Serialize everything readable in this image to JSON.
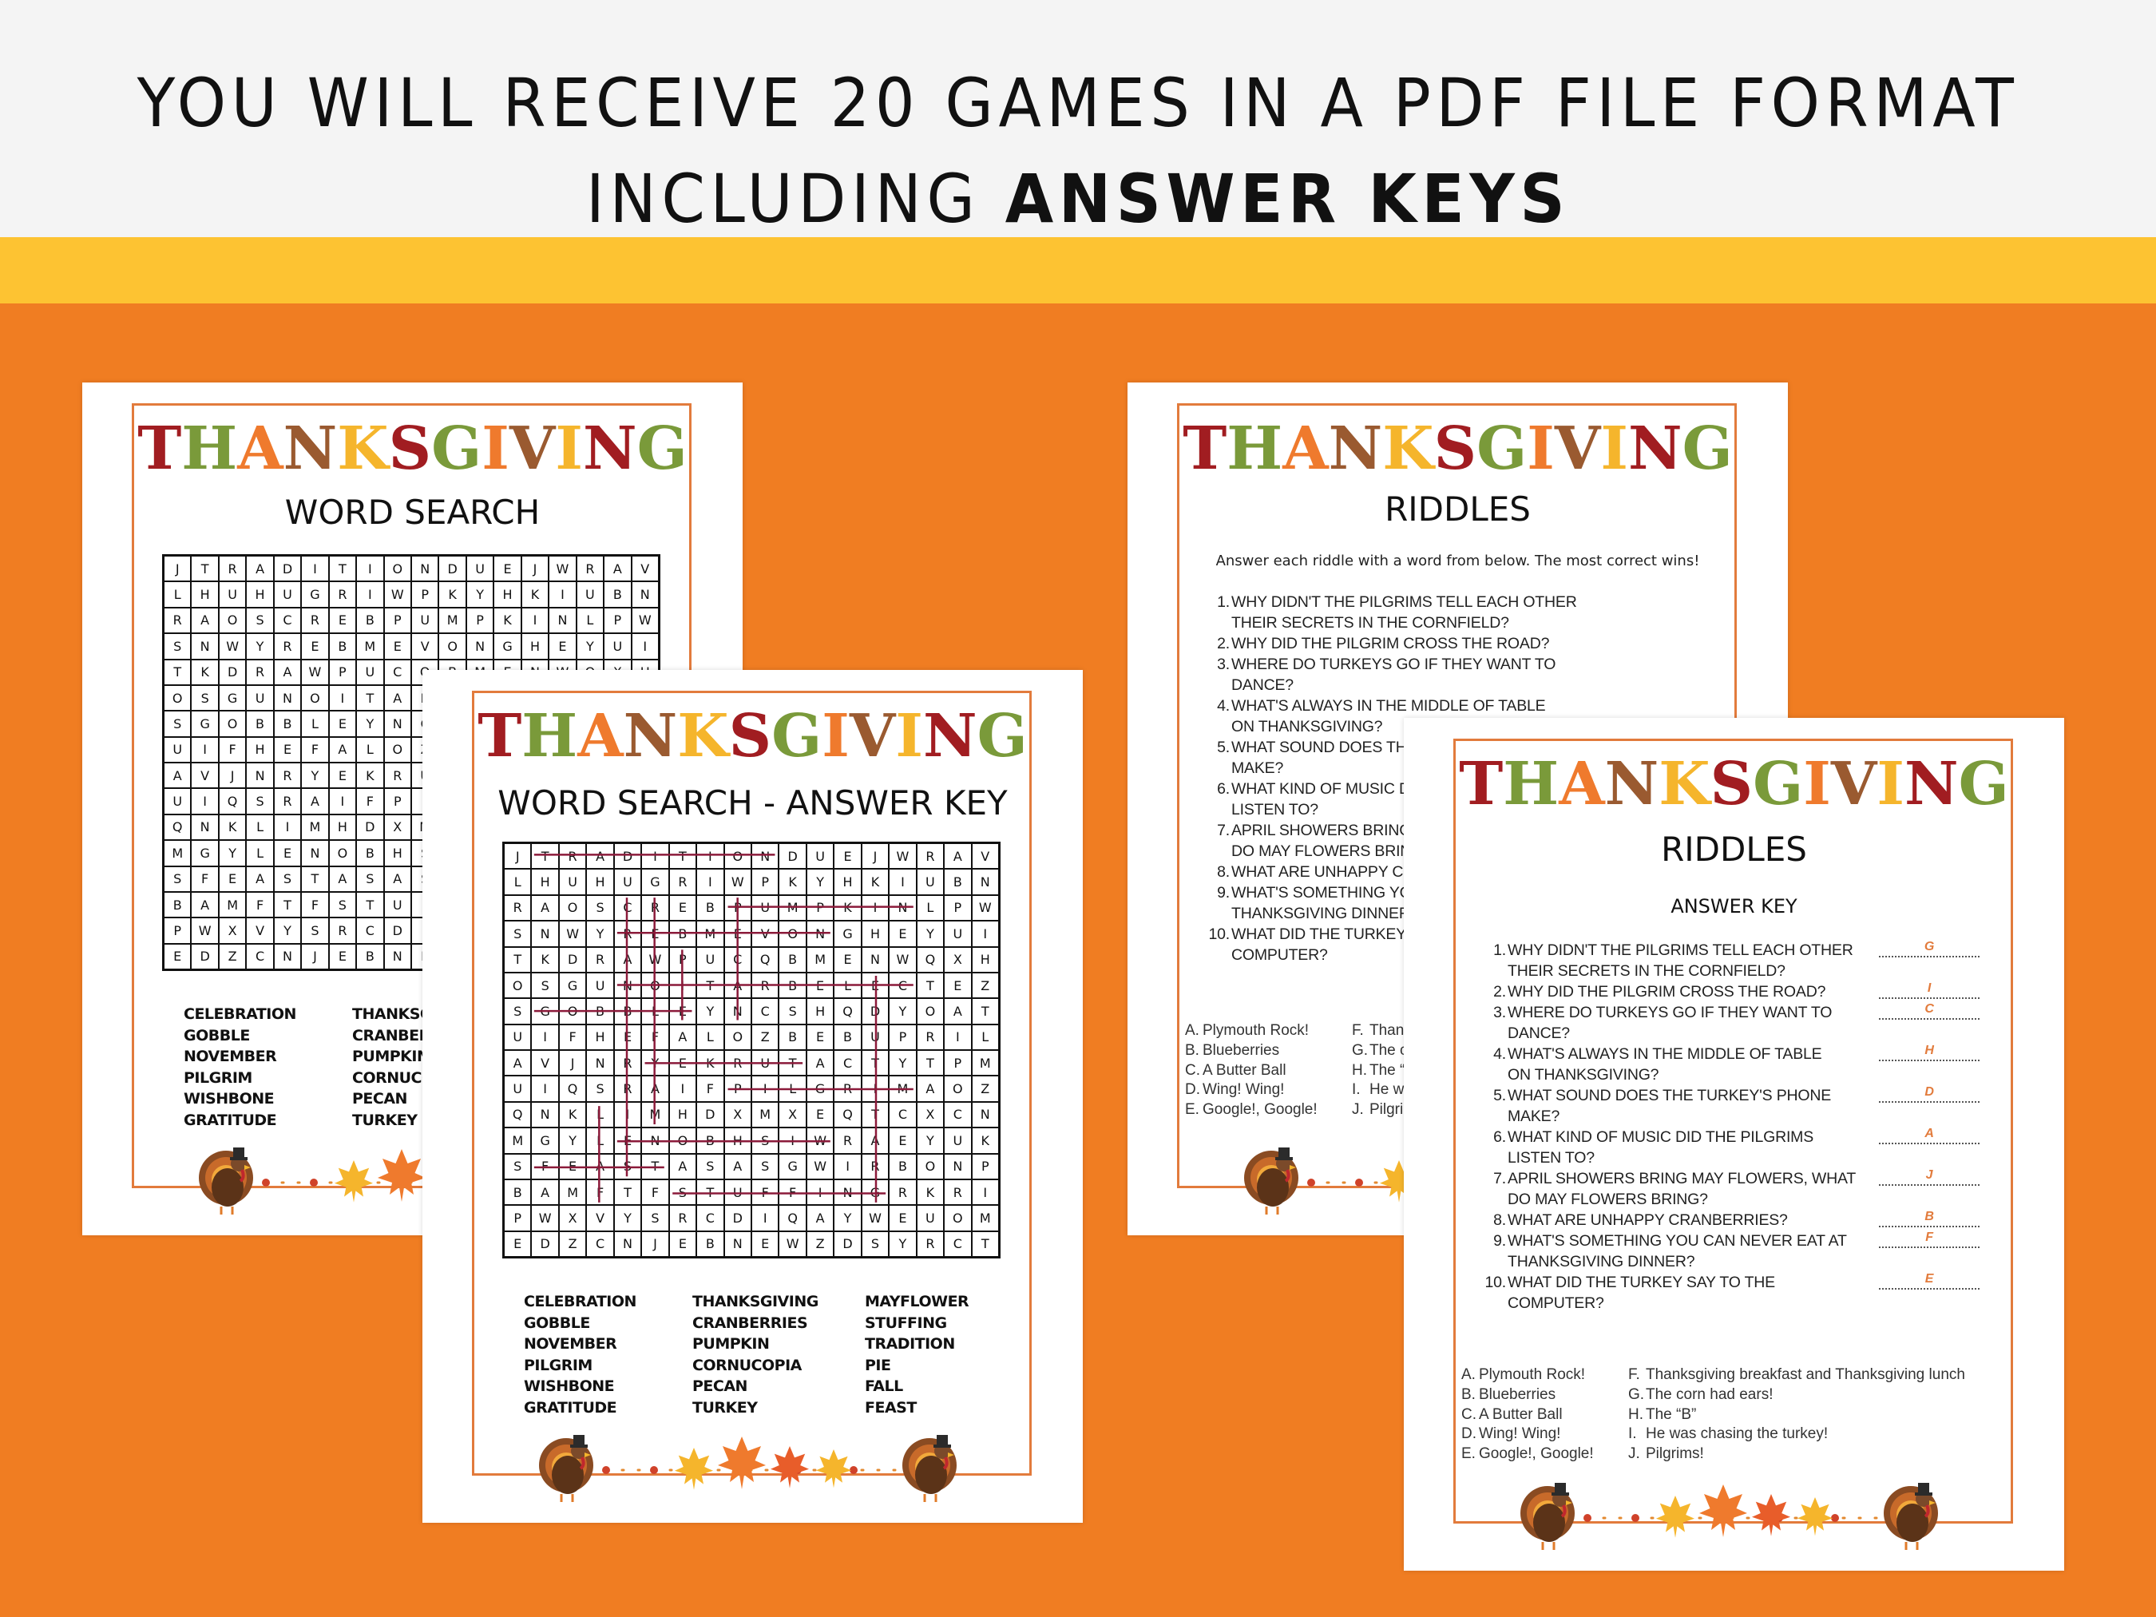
{
  "headline": {
    "line1": "YOU WILL RECEIVE 20 GAMES IN A PDF FILE FORMAT",
    "line2_normal": "INCLUDING ",
    "line2_bold": "ANSWER KEYS"
  },
  "colors": {
    "top_bg": "#f4f4f4",
    "band": "#fdc332",
    "background": "#f07d22",
    "frame": "#e27b3c",
    "strike": "#8b1a3a",
    "brand_letters": [
      "#a11d21",
      "#7a9a3a",
      "#ef7a2d",
      "#9a5a30",
      "#f5b52c",
      "#a11d21",
      "#7a9a3a",
      "#ef7a2d",
      "#9a5a30",
      "#f5b52c",
      "#a11d21",
      "#7a9a3a"
    ]
  },
  "brand": "THANKSGIVING",
  "word_search": {
    "title": "WORD SEARCH",
    "key_title": "WORD SEARCH - ANSWER KEY",
    "grid": [
      "JTRADITIONDUEJWRAV",
      "LHUHUGRIWPKYHKIUBN",
      "RAOSCREBPUMPKINLPW",
      "SNWYREBMEVONGHEYUI",
      "TKDRAWPUCQBMENWQXH",
      "OSGUNOITARBELECTEZ",
      "SGOBBLEYNCSHQDYOAT",
      "UIFHEFALOZBEBUPRIL",
      "AVJNRYEKRUTACTYTPM",
      "UIQSRAIFPILGRIMAOZ",
      "QNKLIMHDXMXEQTCXCN",
      "MGYLENOBHSIWRAEYUK",
      "SFEASTASASGWIRBONP",
      "BAMFTFSTUFFINGRKRI",
      "PWXVYSRCDIQAYWEUOM",
      "EDZCNJEBNEWZDSYRCT"
    ],
    "word_columns": [
      [
        "CELEBRATION",
        "GOBBLE",
        "NOVEMBER",
        "PILGRIM",
        "WISHBONE",
        "GRATITUDE"
      ],
      [
        "THANKSGIVING",
        "CRANBERRIES",
        "PUMPKIN",
        "CORNUCOPIA",
        "PECAN",
        "TURKEY"
      ],
      [
        "MAYFLOWER",
        "STUFFING",
        "TRADITION",
        "PIE",
        "FALL",
        "FEAST"
      ]
    ]
  },
  "riddles": {
    "title": "RIDDLES",
    "instructions": "Answer each riddle with a word from below. The most correct wins!",
    "key_subtitle": "ANSWER KEY",
    "questions": [
      {
        "n": "1.",
        "lines": [
          "WHY DIDN'T THE PILGRIMS TELL EACH OTHER",
          "THEIR SECRETS IN THE CORNFIELD?"
        ],
        "answer": "G"
      },
      {
        "n": "2.",
        "lines": [
          "WHY DID THE PILGRIM CROSS THE ROAD?"
        ],
        "answer": "I"
      },
      {
        "n": "3.",
        "lines": [
          "WHERE DO TURKEYS GO IF THEY WANT TO",
          "DANCE?"
        ],
        "answer": "C"
      },
      {
        "n": "4.",
        "lines": [
          "WHAT'S ALWAYS IN THE MIDDLE OF TABLE",
          "ON THANKSGIVING?"
        ],
        "answer": "H"
      },
      {
        "n": "5.",
        "lines": [
          "WHAT SOUND DOES THE TURKEY'S PHONE",
          "MAKE?"
        ],
        "answer": "D"
      },
      {
        "n": "6.",
        "lines": [
          "WHAT KIND OF MUSIC DID THE PILGRIMS",
          "LISTEN TO?"
        ],
        "answer": "A"
      },
      {
        "n": "7.",
        "lines": [
          "APRIL SHOWERS BRING MAY FLOWERS, WHAT",
          "DO MAY FLOWERS BRING?"
        ],
        "answer": "J"
      },
      {
        "n": "8.",
        "lines": [
          "WHAT ARE UNHAPPY CRANBERRIES?"
        ],
        "answer": "B"
      },
      {
        "n": "9.",
        "lines": [
          "WHAT'S SOMETHING YOU CAN NEVER EAT AT",
          "THANKSGIVING DINNER?"
        ],
        "answer": "F"
      },
      {
        "n": "10.",
        "lines": [
          "WHAT DID THE TURKEY SAY TO THE",
          "COMPUTER?"
        ],
        "answer": "E"
      }
    ],
    "options_left": [
      [
        "A.",
        "Plymouth Rock!"
      ],
      [
        "B.",
        "Blueberries"
      ],
      [
        "C.",
        "A Butter Ball"
      ],
      [
        "D.",
        "Wing! Wing!"
      ],
      [
        "E.",
        "Google!, Google!"
      ]
    ],
    "options_right": [
      [
        "F.",
        "Thanksgiving breakfast and Thanksgiving lunch"
      ],
      [
        "G.",
        "The corn had ears!"
      ],
      [
        "H.",
        "The “B”"
      ],
      [
        "I.",
        "He was chasing the turkey!"
      ],
      [
        "J.",
        "Pilgrims!"
      ]
    ]
  }
}
